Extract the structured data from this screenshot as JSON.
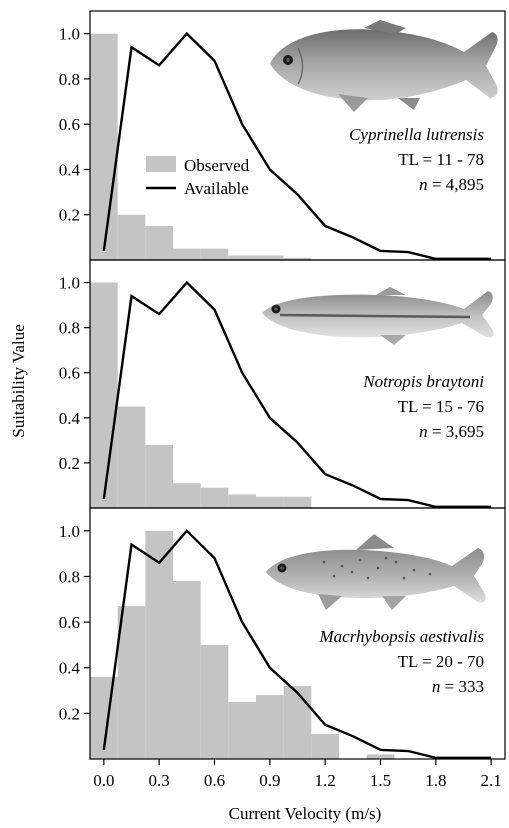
{
  "chart_data": {
    "type": "bar",
    "ylabel": "Suitability Value",
    "xlabel": "Current Velocity (m/s)",
    "xticks": [
      "0.0",
      "0.3",
      "0.6",
      "0.9",
      "1.2",
      "1.5",
      "1.8",
      "2.1"
    ],
    "yticks": [
      "0.2",
      "0.4",
      "0.6",
      "0.8",
      "1.0"
    ],
    "xlim": [
      -0.075,
      2.175
    ],
    "ylim": [
      0,
      1.1
    ],
    "legend": [
      "Observed",
      "Available"
    ],
    "bin_centers": [
      0.0,
      0.15,
      0.3,
      0.45,
      0.6,
      0.75,
      0.9,
      1.05,
      1.2,
      1.35,
      1.5
    ],
    "bin_width": 0.15,
    "available": {
      "x": [
        0.0,
        0.15,
        0.3,
        0.45,
        0.6,
        0.75,
        0.9,
        1.05,
        1.2,
        1.35,
        1.5,
        1.65,
        1.8,
        1.95,
        2.1
      ],
      "y": [
        0.04,
        0.94,
        0.86,
        1.0,
        0.88,
        0.6,
        0.4,
        0.29,
        0.15,
        0.1,
        0.04,
        0.035,
        0.005,
        0.005,
        0.005
      ]
    },
    "panels": [
      {
        "species": "Cyprinella lutrensis",
        "tl_label": "TL = 11 - 78",
        "n_prefix": "n",
        "n_value": " = 4,895",
        "observed": [
          1.0,
          0.2,
          0.15,
          0.05,
          0.05,
          0.02,
          0.02,
          0.01,
          0.0,
          0.0,
          0.0
        ]
      },
      {
        "species": "Notropis braytoni",
        "tl_label": "TL = 15 - 76",
        "n_prefix": "n",
        "n_value": " = 3,695",
        "observed": [
          1.0,
          0.45,
          0.28,
          0.11,
          0.09,
          0.06,
          0.05,
          0.05,
          0.0,
          0.0,
          0.0
        ]
      },
      {
        "species": "Macrhybopsis aestivalis",
        "tl_label": "TL = 20 - 70",
        "n_prefix": "n",
        "n_value": " = 333",
        "observed": [
          0.36,
          0.67,
          1.0,
          0.78,
          0.5,
          0.25,
          0.28,
          0.32,
          0.11,
          0.0,
          0.02
        ]
      }
    ]
  },
  "colors": {
    "observed_bar": "#c4c4c4",
    "available_line": "#000000",
    "fish_body": "#9a9a9a"
  },
  "icons": [
    "fish-photo-cyprinella",
    "fish-photo-notropis",
    "fish-photo-macrhybopsis"
  ]
}
